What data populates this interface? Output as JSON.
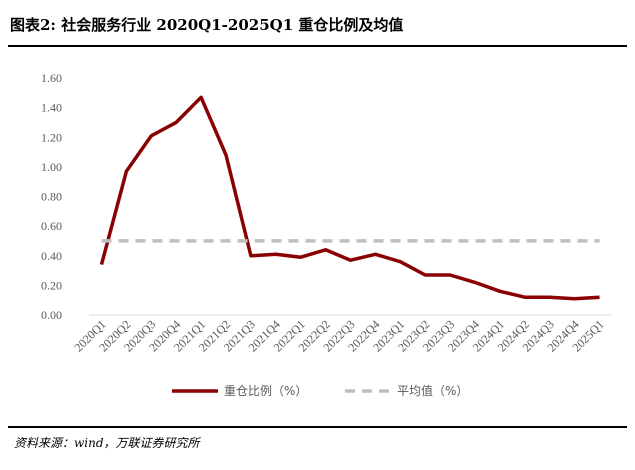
{
  "header": {
    "title": "图表2:  社会服务行业 2020Q1-2025Q1 重仓比例及均值"
  },
  "footer": {
    "source": "资料来源：wind，万联证券研究所"
  },
  "colors": {
    "series_main": "#8B0000",
    "series_avg": "#BFBFBF",
    "axis": "#D9D9D9",
    "tick_text": "#595959"
  },
  "chart_data": {
    "type": "line",
    "categories": [
      "2020Q1",
      "2020Q2",
      "2020Q3",
      "2020Q4",
      "2021Q1",
      "2021Q2",
      "2021Q3",
      "2021Q4",
      "2022Q1",
      "2022Q2",
      "2022Q3",
      "2022Q4",
      "2023Q1",
      "2023Q2",
      "2023Q3",
      "2023Q4",
      "2024Q1",
      "2024Q2",
      "2024Q3",
      "2024Q4",
      "2025Q1"
    ],
    "series": [
      {
        "name": "重仓比例（%）",
        "values": [
          0.34,
          0.97,
          1.21,
          1.3,
          1.47,
          1.08,
          0.4,
          0.41,
          0.39,
          0.44,
          0.37,
          0.41,
          0.36,
          0.27,
          0.27,
          0.22,
          0.16,
          0.12,
          0.12,
          0.11,
          0.12
        ]
      },
      {
        "name": "平均值（%）",
        "values": [
          0.5,
          0.5,
          0.5,
          0.5,
          0.5,
          0.5,
          0.5,
          0.5,
          0.5,
          0.5,
          0.5,
          0.5,
          0.5,
          0.5,
          0.5,
          0.5,
          0.5,
          0.5,
          0.5,
          0.5,
          0.5
        ]
      }
    ],
    "yticks": [
      "0.00",
      "0.20",
      "0.40",
      "0.60",
      "0.80",
      "1.00",
      "1.20",
      "1.40",
      "1.60"
    ],
    "ylim": [
      0,
      1.6
    ],
    "grid": false,
    "legend_position": "bottom"
  }
}
